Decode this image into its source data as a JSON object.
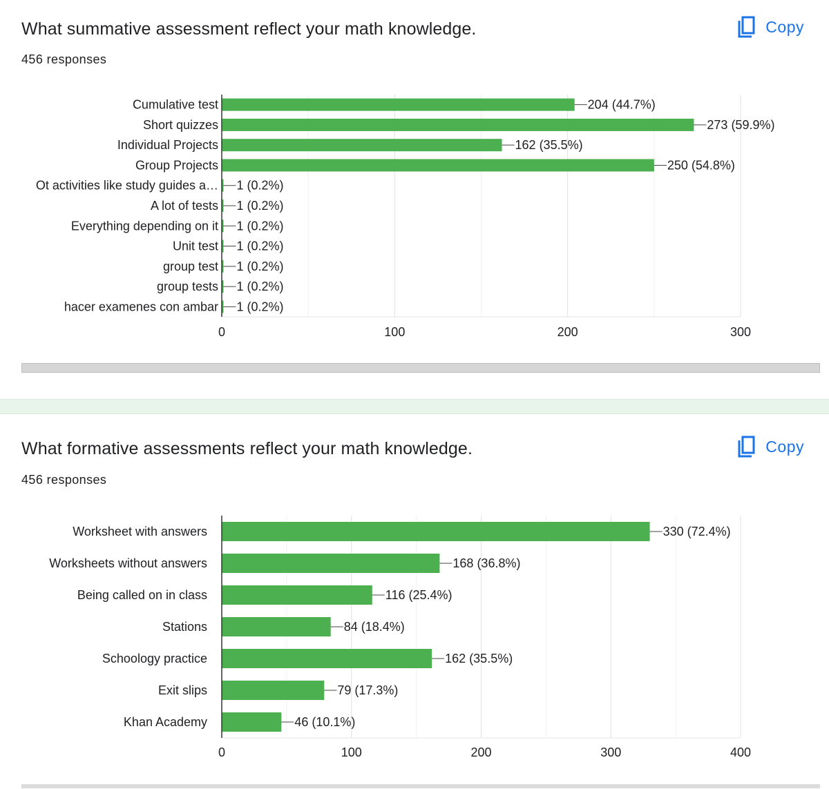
{
  "copy_label": "Copy",
  "questions": [
    {
      "title": "What summative assessment reflect your math knowledge.",
      "responses": "456 responses",
      "chart_data": {
        "type": "bar",
        "orientation": "horizontal",
        "categories": [
          "Cumulative test",
          "Short quizzes",
          "Individual Projects",
          "Group Projects",
          "Ot activities like study guides a…",
          "A lot of tests",
          "Everything depending on it",
          "Unit test",
          "group test",
          "group tests",
          "hacer examenes con ambar"
        ],
        "values": [
          204,
          273,
          162,
          250,
          1,
          1,
          1,
          1,
          1,
          1,
          1
        ],
        "data_labels": [
          "204 (44.7%)",
          "273 (59.9%)",
          "162 (35.5%)",
          "250 (54.8%)",
          "1 (0.2%)",
          "1 (0.2%)",
          "1 (0.2%)",
          "1 (0.2%)",
          "1 (0.2%)",
          "1 (0.2%)",
          "1 (0.2%)"
        ],
        "xlim": [
          0,
          300
        ],
        "xticks": [
          "0",
          "100",
          "200",
          "300"
        ],
        "grid": true,
        "bar_color": "#4caf50"
      }
    },
    {
      "title": "What formative assessments reflect your math knowledge.",
      "responses": "456 responses",
      "chart_data": {
        "type": "bar",
        "orientation": "horizontal",
        "categories": [
          "Worksheet with answers",
          "Worksheets without answers",
          "Being called on in class",
          "Stations",
          "Schoology practice",
          "Exit slips",
          "Khan Academy"
        ],
        "values": [
          330,
          168,
          116,
          84,
          162,
          79,
          46
        ],
        "data_labels": [
          "330 (72.4%)",
          "168 (36.8%)",
          "116 (25.4%)",
          "84 (18.4%)",
          "162 (35.5%)",
          "79 (17.3%)",
          "46 (10.1%)"
        ],
        "xlim": [
          0,
          400
        ],
        "xticks": [
          "0",
          "100",
          "200",
          "300",
          "400"
        ],
        "grid": true,
        "bar_color": "#4caf50"
      }
    }
  ]
}
